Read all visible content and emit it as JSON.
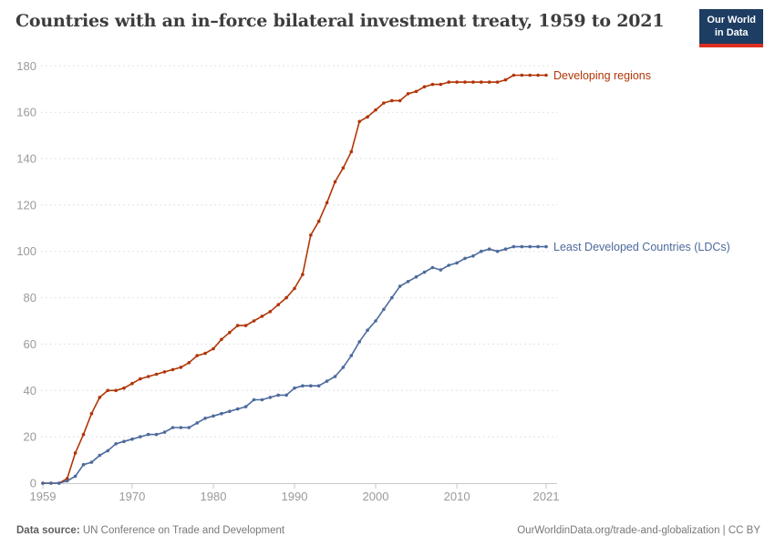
{
  "header": {
    "title": "Countries with an in–force bilateral investment treaty, 1959 to 2021",
    "logo_line1": "Our World",
    "logo_line2": "in Data"
  },
  "footer": {
    "datasource_label": "Data source:",
    "datasource_value": "UN Conference on Trade and Development",
    "credit": "OurWorldinData.org/trade-and-globalization | CC BY"
  },
  "chart_data": {
    "type": "line",
    "title": "Countries with an in–force bilateral investment treaty, 1959 to 2021",
    "xlabel": "",
    "ylabel": "",
    "xlim": [
      1959,
      2021
    ],
    "ylim": [
      0,
      180
    ],
    "x_ticks": [
      1959,
      1970,
      1980,
      1990,
      2000,
      2010,
      2021
    ],
    "y_ticks": [
      0,
      20,
      40,
      60,
      80,
      100,
      120,
      140,
      160,
      180
    ],
    "grid": true,
    "legend_position": "end-of-line",
    "x": [
      1959,
      1960,
      1961,
      1962,
      1963,
      1964,
      1965,
      1966,
      1967,
      1968,
      1969,
      1970,
      1971,
      1972,
      1973,
      1974,
      1975,
      1976,
      1977,
      1978,
      1979,
      1980,
      1981,
      1982,
      1983,
      1984,
      1985,
      1986,
      1987,
      1988,
      1989,
      1990,
      1991,
      1992,
      1993,
      1994,
      1995,
      1996,
      1997,
      1998,
      1999,
      2000,
      2001,
      2002,
      2003,
      2004,
      2005,
      2006,
      2007,
      2008,
      2009,
      2010,
      2011,
      2012,
      2013,
      2014,
      2015,
      2016,
      2017,
      2018,
      2019,
      2020,
      2021
    ],
    "series": [
      {
        "name": "Developing regions",
        "color": "#b13507",
        "values": [
          0,
          0,
          0,
          2,
          13,
          21,
          30,
          37,
          40,
          40,
          41,
          43,
          45,
          46,
          47,
          48,
          49,
          50,
          52,
          55,
          56,
          58,
          62,
          65,
          68,
          68,
          70,
          72,
          74,
          77,
          80,
          84,
          90,
          107,
          113,
          121,
          130,
          136,
          143,
          156,
          158,
          161,
          164,
          165,
          165,
          168,
          169,
          171,
          172,
          172,
          173,
          173,
          173,
          173,
          173,
          173,
          173,
          174,
          176,
          176,
          176,
          176,
          176
        ]
      },
      {
        "name": "Least Developed Countries (LDCs)",
        "color": "#4c6a9c",
        "values": [
          0,
          0,
          0,
          1,
          3,
          8,
          9,
          12,
          14,
          17,
          18,
          19,
          20,
          21,
          21,
          22,
          24,
          24,
          24,
          26,
          28,
          29,
          30,
          31,
          32,
          33,
          36,
          36,
          37,
          38,
          38,
          41,
          42,
          42,
          42,
          44,
          46,
          50,
          55,
          61,
          66,
          70,
          75,
          80,
          85,
          87,
          89,
          91,
          93,
          92,
          94,
          95,
          97,
          98,
          100,
          101,
          100,
          101,
          102,
          102,
          102,
          102,
          102
        ]
      }
    ]
  }
}
